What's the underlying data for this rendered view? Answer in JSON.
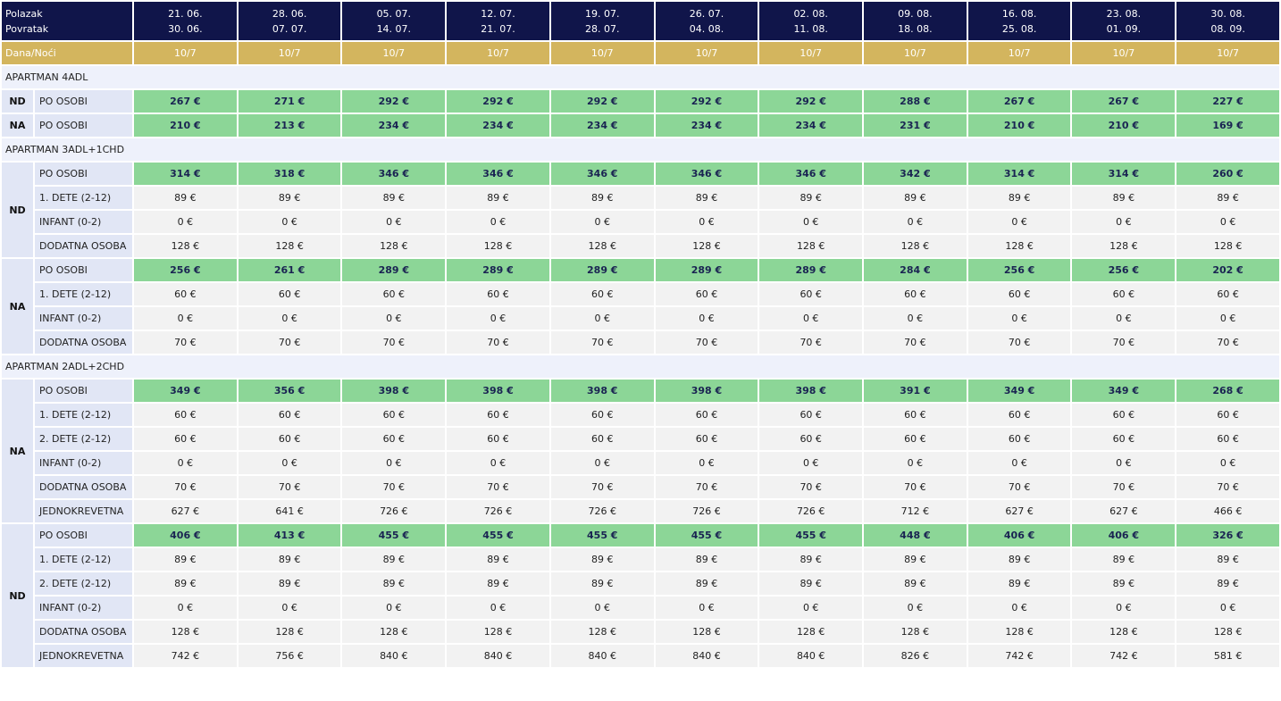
{
  "header": {
    "departure_label": "Polazak",
    "return_label": "Povratak",
    "nights_label": "Dana/Noći",
    "periods": [
      {
        "from": "21. 06.",
        "to": "30. 06.",
        "nights": "10/7"
      },
      {
        "from": "28. 06.",
        "to": "07. 07.",
        "nights": "10/7"
      },
      {
        "from": "05. 07.",
        "to": "14. 07.",
        "nights": "10/7"
      },
      {
        "from": "12. 07.",
        "to": "21. 07.",
        "nights": "10/7"
      },
      {
        "from": "19. 07.",
        "to": "28. 07.",
        "nights": "10/7"
      },
      {
        "from": "26. 07.",
        "to": "04. 08.",
        "nights": "10/7"
      },
      {
        "from": "02. 08.",
        "to": "11. 08.",
        "nights": "10/7"
      },
      {
        "from": "09. 08.",
        "to": "18. 08.",
        "nights": "10/7"
      },
      {
        "from": "16. 08.",
        "to": "25. 08.",
        "nights": "10/7"
      },
      {
        "from": "23. 08.",
        "to": "01. 09.",
        "nights": "10/7"
      },
      {
        "from": "30. 08.",
        "to": "08. 09.",
        "nights": "10/7"
      }
    ]
  },
  "sections": [
    {
      "title": "APARTMAN 4ADL",
      "groups": [
        {
          "label": "ND",
          "rows": [
            {
              "label": "PO OSOBI",
              "highlight": true,
              "values": [
                "267 €",
                "271 €",
                "292 €",
                "292 €",
                "292 €",
                "292 €",
                "292 €",
                "288 €",
                "267 €",
                "267 €",
                "227 €"
              ]
            }
          ]
        },
        {
          "label": "NA",
          "rows": [
            {
              "label": "PO OSOBI",
              "highlight": true,
              "values": [
                "210 €",
                "213 €",
                "234 €",
                "234 €",
                "234 €",
                "234 €",
                "234 €",
                "231 €",
                "210 €",
                "210 €",
                "169 €"
              ]
            }
          ]
        }
      ]
    },
    {
      "title": "APARTMAN 3ADL+1CHD",
      "groups": [
        {
          "label": "ND",
          "rows": [
            {
              "label": "PO OSOBI",
              "highlight": true,
              "values": [
                "314 €",
                "318 €",
                "346 €",
                "346 €",
                "346 €",
                "346 €",
                "346 €",
                "342 €",
                "314 €",
                "314 €",
                "260 €"
              ]
            },
            {
              "label": "1. DETE (2-12)",
              "highlight": false,
              "values": [
                "89 €",
                "89 €",
                "89 €",
                "89 €",
                "89 €",
                "89 €",
                "89 €",
                "89 €",
                "89 €",
                "89 €",
                "89 €"
              ]
            },
            {
              "label": "INFANT (0-2)",
              "highlight": false,
              "values": [
                "0 €",
                "0 €",
                "0 €",
                "0 €",
                "0 €",
                "0 €",
                "0 €",
                "0 €",
                "0 €",
                "0 €",
                "0 €"
              ]
            },
            {
              "label": "DODATNA OSOBA",
              "highlight": false,
              "values": [
                "128 €",
                "128 €",
                "128 €",
                "128 €",
                "128 €",
                "128 €",
                "128 €",
                "128 €",
                "128 €",
                "128 €",
                "128 €"
              ]
            }
          ]
        },
        {
          "label": "NA",
          "rows": [
            {
              "label": "PO OSOBI",
              "highlight": true,
              "values": [
                "256 €",
                "261 €",
                "289 €",
                "289 €",
                "289 €",
                "289 €",
                "289 €",
                "284 €",
                "256 €",
                "256 €",
                "202 €"
              ]
            },
            {
              "label": "1. DETE (2-12)",
              "highlight": false,
              "values": [
                "60 €",
                "60 €",
                "60 €",
                "60 €",
                "60 €",
                "60 €",
                "60 €",
                "60 €",
                "60 €",
                "60 €",
                "60 €"
              ]
            },
            {
              "label": "INFANT (0-2)",
              "highlight": false,
              "values": [
                "0 €",
                "0 €",
                "0 €",
                "0 €",
                "0 €",
                "0 €",
                "0 €",
                "0 €",
                "0 €",
                "0 €",
                "0 €"
              ]
            },
            {
              "label": "DODATNA OSOBA",
              "highlight": false,
              "values": [
                "70 €",
                "70 €",
                "70 €",
                "70 €",
                "70 €",
                "70 €",
                "70 €",
                "70 €",
                "70 €",
                "70 €",
                "70 €"
              ]
            }
          ]
        }
      ]
    },
    {
      "title": "APARTMAN 2ADL+2CHD",
      "groups": [
        {
          "label": "NA",
          "rows": [
            {
              "label": "PO OSOBI",
              "highlight": true,
              "values": [
                "349 €",
                "356 €",
                "398 €",
                "398 €",
                "398 €",
                "398 €",
                "398 €",
                "391 €",
                "349 €",
                "349 €",
                "268 €"
              ]
            },
            {
              "label": "1. DETE (2-12)",
              "highlight": false,
              "values": [
                "60 €",
                "60 €",
                "60 €",
                "60 €",
                "60 €",
                "60 €",
                "60 €",
                "60 €",
                "60 €",
                "60 €",
                "60 €"
              ]
            },
            {
              "label": "2. DETE (2-12)",
              "highlight": false,
              "values": [
                "60 €",
                "60 €",
                "60 €",
                "60 €",
                "60 €",
                "60 €",
                "60 €",
                "60 €",
                "60 €",
                "60 €",
                "60 €"
              ]
            },
            {
              "label": "INFANT (0-2)",
              "highlight": false,
              "values": [
                "0 €",
                "0 €",
                "0 €",
                "0 €",
                "0 €",
                "0 €",
                "0 €",
                "0 €",
                "0 €",
                "0 €",
                "0 €"
              ]
            },
            {
              "label": "DODATNA OSOBA",
              "highlight": false,
              "values": [
                "70 €",
                "70 €",
                "70 €",
                "70 €",
                "70 €",
                "70 €",
                "70 €",
                "70 €",
                "70 €",
                "70 €",
                "70 €"
              ]
            },
            {
              "label": "JEDNOKREVETNA",
              "highlight": false,
              "values": [
                "627 €",
                "641 €",
                "726 €",
                "726 €",
                "726 €",
                "726 €",
                "726 €",
                "712 €",
                "627 €",
                "627 €",
                "466 €"
              ]
            }
          ]
        },
        {
          "label": "ND",
          "rows": [
            {
              "label": "PO OSOBI",
              "highlight": true,
              "values": [
                "406 €",
                "413 €",
                "455 €",
                "455 €",
                "455 €",
                "455 €",
                "455 €",
                "448 €",
                "406 €",
                "406 €",
                "326 €"
              ]
            },
            {
              "label": "1. DETE (2-12)",
              "highlight": false,
              "values": [
                "89 €",
                "89 €",
                "89 €",
                "89 €",
                "89 €",
                "89 €",
                "89 €",
                "89 €",
                "89 €",
                "89 €",
                "89 €"
              ]
            },
            {
              "label": "2. DETE (2-12)",
              "highlight": false,
              "values": [
                "89 €",
                "89 €",
                "89 €",
                "89 €",
                "89 €",
                "89 €",
                "89 €",
                "89 €",
                "89 €",
                "89 €",
                "89 €"
              ]
            },
            {
              "label": "INFANT (0-2)",
              "highlight": false,
              "values": [
                "0 €",
                "0 €",
                "0 €",
                "0 €",
                "0 €",
                "0 €",
                "0 €",
                "0 €",
                "0 €",
                "0 €",
                "0 €"
              ]
            },
            {
              "label": "DODATNA OSOBA",
              "highlight": false,
              "values": [
                "128 €",
                "128 €",
                "128 €",
                "128 €",
                "128 €",
                "128 €",
                "128 €",
                "128 €",
                "128 €",
                "128 €",
                "128 €"
              ]
            },
            {
              "label": "JEDNOKREVETNA",
              "highlight": false,
              "values": [
                "742 €",
                "756 €",
                "840 €",
                "840 €",
                "840 €",
                "840 €",
                "840 €",
                "826 €",
                "742 €",
                "742 €",
                "581 €"
              ]
            }
          ]
        }
      ]
    }
  ]
}
